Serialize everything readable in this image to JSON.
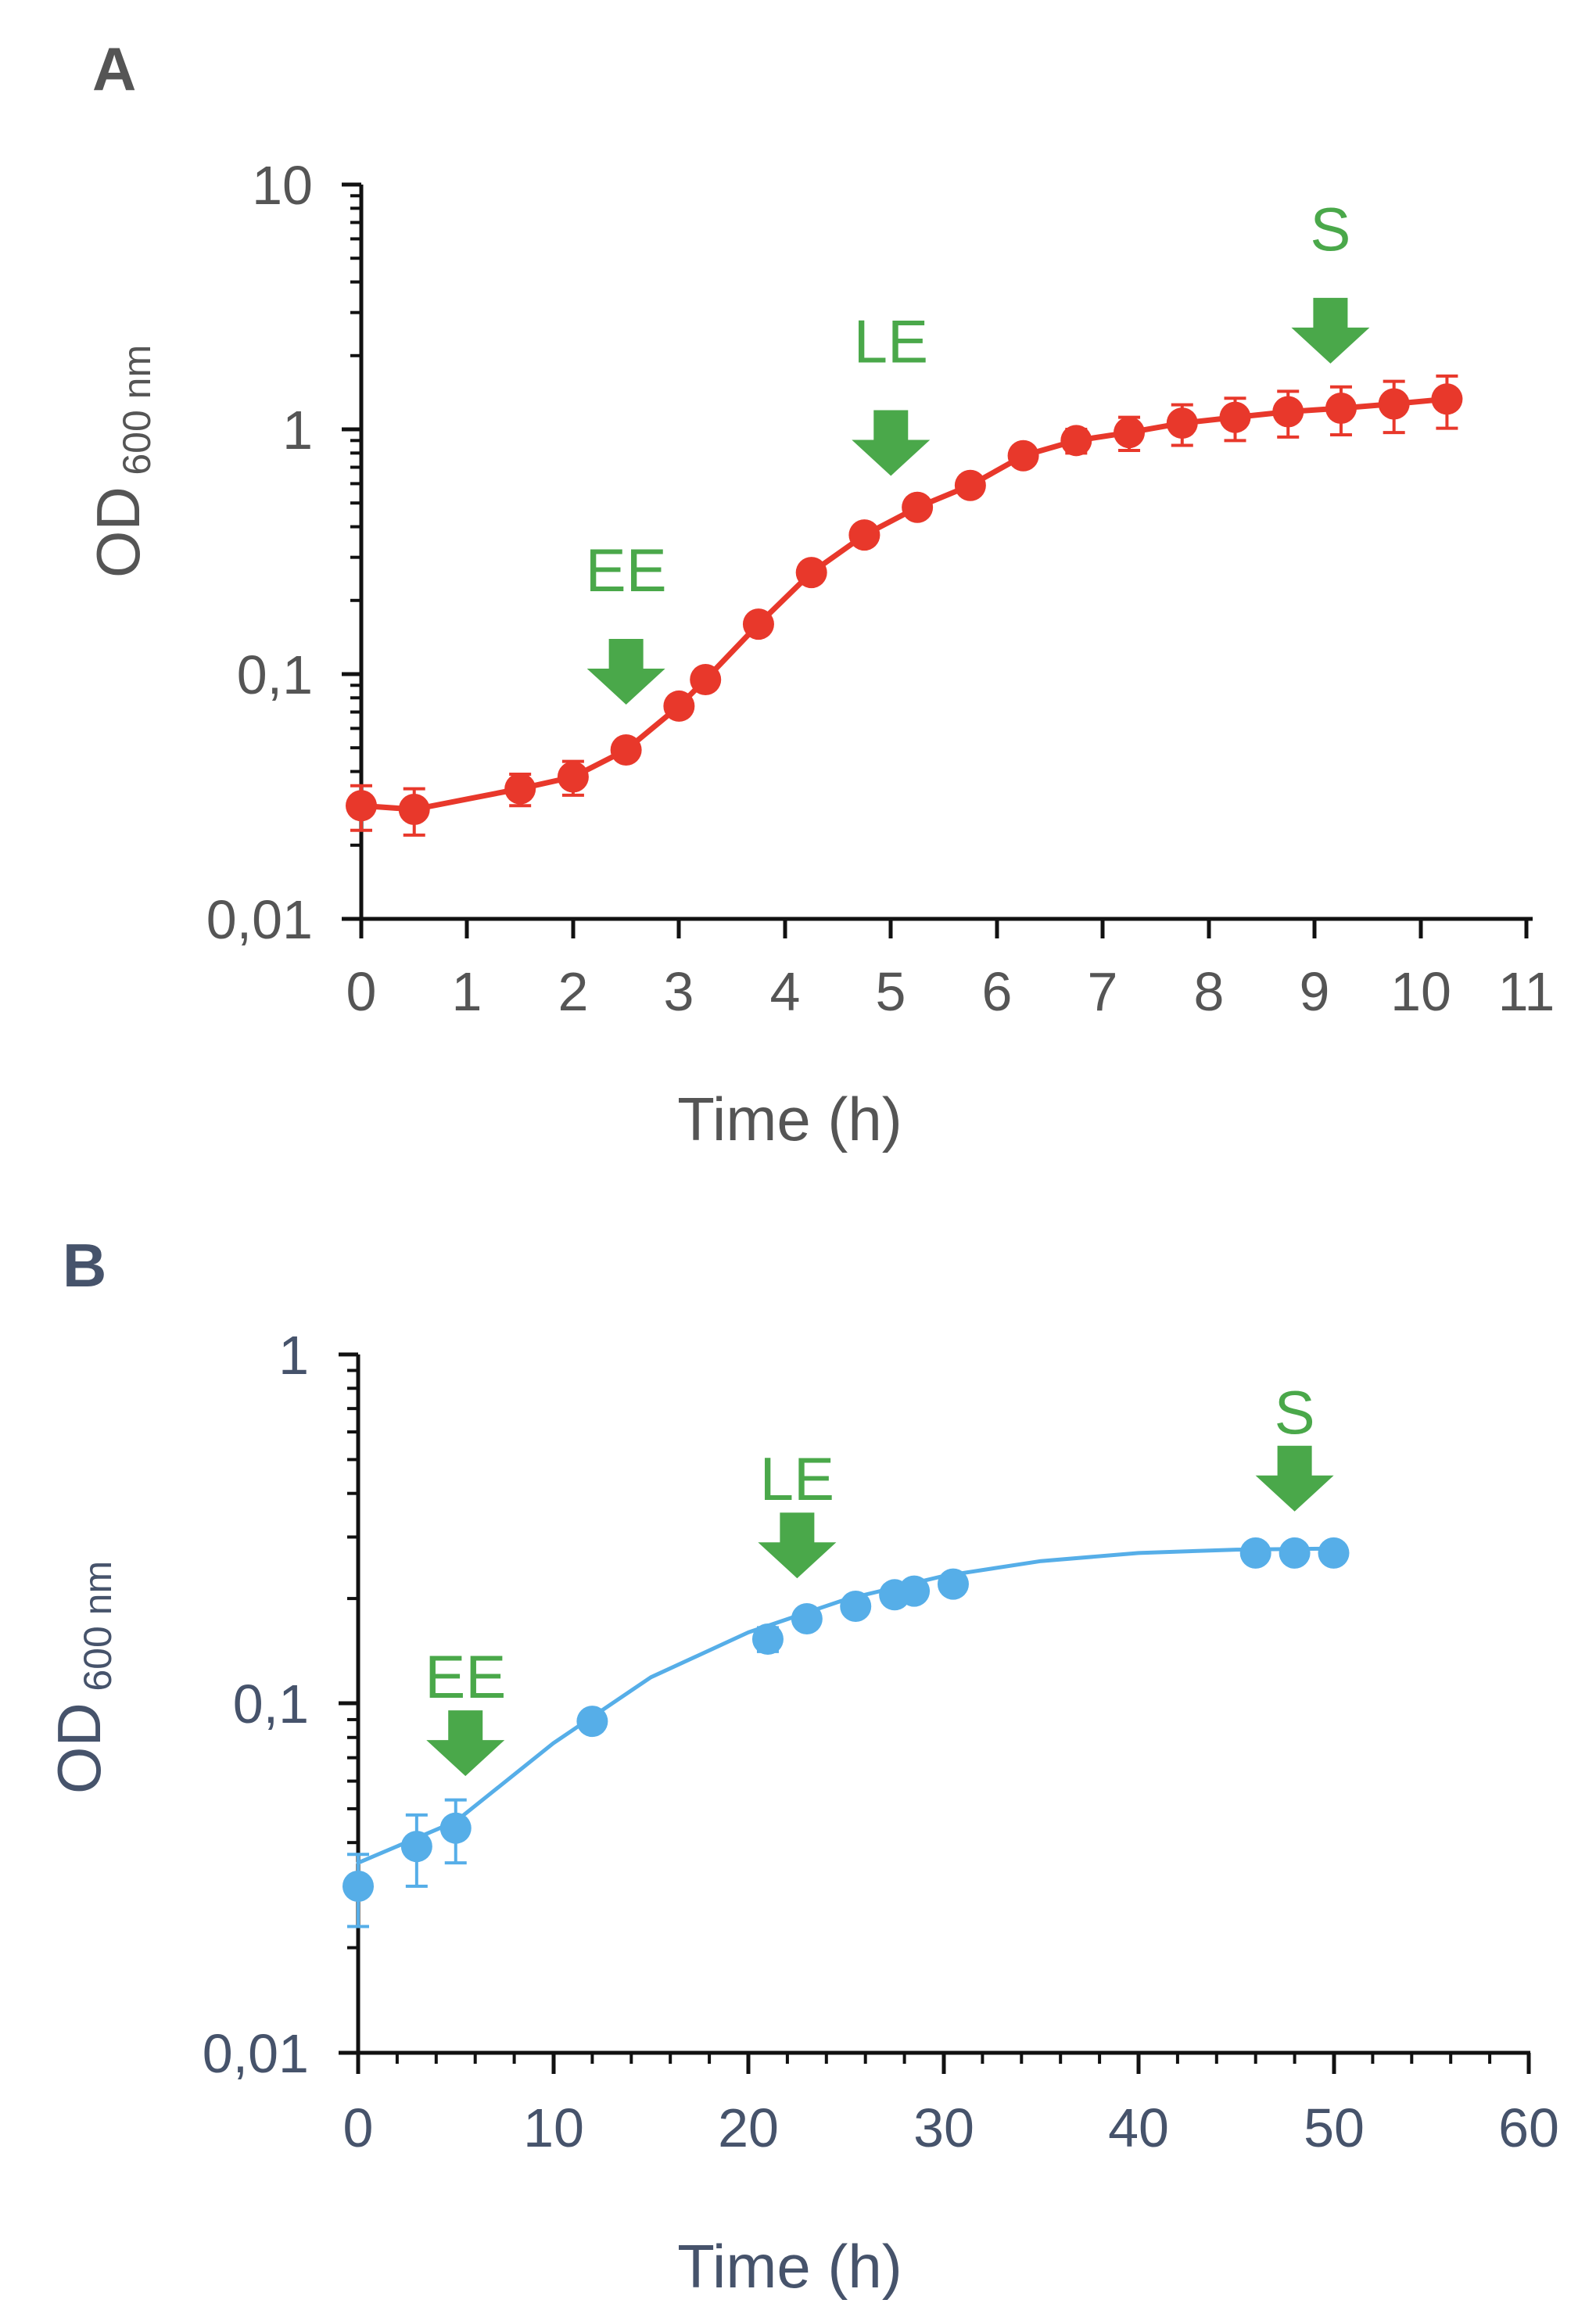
{
  "colors": {
    "panel_a_series": "#e8382b",
    "panel_b_series": "#56aee8",
    "annotation_arrow": "#4aa84a",
    "axis_a": "#555555",
    "axis_b": "#46536b",
    "axis_line": "#111111"
  },
  "chart_data": [
    {
      "panel": "A",
      "type": "line",
      "xlabel": "Time (h)",
      "ylabel": "OD",
      "ylabel_subscript": "600 nm",
      "x_scale": "linear",
      "y_scale": "log",
      "xlim": [
        0,
        11
      ],
      "ylim": [
        0.01,
        10
      ],
      "x_ticks": [
        0,
        1,
        2,
        3,
        4,
        5,
        6,
        7,
        8,
        9,
        10,
        11
      ],
      "x_tick_labels": [
        "0",
        "1",
        "2",
        "3",
        "4",
        "5",
        "6",
        "7",
        "8",
        "9",
        "10",
        "11"
      ],
      "y_ticks": [
        0.01,
        0.1,
        1,
        10
      ],
      "y_tick_labels": [
        "0,01",
        "0,1",
        "1",
        "10"
      ],
      "grid": false,
      "series": [
        {
          "x": [
            0,
            0.5,
            1.5,
            2,
            2.5,
            3,
            3.25,
            3.75,
            4.25,
            4.75,
            5.25,
            5.75,
            6.25,
            6.75,
            7.25,
            7.75,
            8.25,
            8.75,
            9.25,
            9.75,
            10.25
          ],
          "y": [
            0.029,
            0.028,
            0.034,
            0.038,
            0.049,
            0.074,
            0.095,
            0.16,
            0.26,
            0.37,
            0.48,
            0.59,
            0.78,
            0.9,
            0.97,
            1.06,
            1.12,
            1.18,
            1.22,
            1.27,
            1.33
          ],
          "error": [
            0.006,
            0.006,
            0.005,
            0.006,
            0.004,
            0.005,
            0.005,
            0.01,
            0.015,
            0.02,
            0.025,
            0.03,
            0.05,
            0.1,
            0.15,
            0.2,
            0.22,
            0.25,
            0.27,
            0.3,
            0.32
          ]
        }
      ],
      "annotations": [
        {
          "label": "EE",
          "x": 2.5
        },
        {
          "label": "LE",
          "x": 5
        },
        {
          "label": "S",
          "x": 9.15
        }
      ]
    },
    {
      "panel": "B",
      "type": "scatter",
      "xlabel": "Time (h)",
      "ylabel": "OD",
      "ylabel_subscript": "600 nm",
      "x_scale": "linear",
      "y_scale": "log",
      "xlim": [
        0,
        60
      ],
      "ylim": [
        0.01,
        1
      ],
      "x_ticks": [
        0,
        10,
        20,
        30,
        40,
        50,
        60
      ],
      "x_tick_labels": [
        "0",
        "10",
        "20",
        "30",
        "40",
        "50",
        "60"
      ],
      "y_ticks": [
        0.01,
        0.1,
        1
      ],
      "y_tick_labels": [
        "0,01",
        "0,1",
        "1"
      ],
      "grid": false,
      "series": [
        {
          "x": [
            0,
            3,
            5,
            12,
            21,
            23,
            25.5,
            27.5,
            28.5,
            30.5,
            46,
            48,
            50
          ],
          "y": [
            0.03,
            0.039,
            0.044,
            0.089,
            0.153,
            0.175,
            0.19,
            0.205,
            0.21,
            0.22,
            0.27,
            0.27,
            0.27
          ],
          "error": [
            0.007,
            0.009,
            0.009,
            0.004,
            0.012,
            0.007,
            0.005,
            0.005,
            0.005,
            0.005,
            0.004,
            0.004,
            0.004
          ]
        }
      ],
      "fit_curve": {
        "x": [
          0,
          5,
          10,
          15,
          20,
          25,
          30,
          35,
          40,
          45,
          50
        ],
        "y": [
          0.035,
          0.046,
          0.077,
          0.119,
          0.16,
          0.199,
          0.232,
          0.256,
          0.27,
          0.276,
          0.278
        ]
      },
      "annotations": [
        {
          "label": "EE",
          "x": 5.5
        },
        {
          "label": "LE",
          "x": 22.5
        },
        {
          "label": "S",
          "x": 48
        }
      ]
    }
  ]
}
